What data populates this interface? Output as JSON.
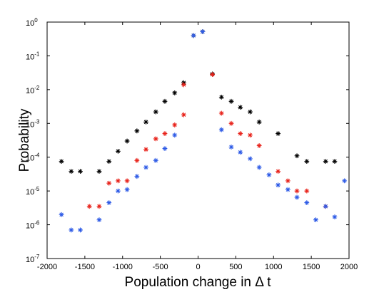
{
  "chart_data": {
    "type": "scatter",
    "xlabel": "Population change in Δ t",
    "ylabel": "Probability",
    "y_scale": "log",
    "xlim": [
      -2000,
      2000
    ],
    "ylim": [
      1e-07,
      1
    ],
    "grid": false,
    "legend": "none",
    "marker": "asterisk",
    "x_ticks": [
      {
        "value": -2000,
        "label": "-2000"
      },
      {
        "value": -1500,
        "label": "-1500"
      },
      {
        "value": -1000,
        "label": "-1000"
      },
      {
        "value": -500,
        "label": "-500"
      },
      {
        "value": 0,
        "label": "0"
      },
      {
        "value": 500,
        "label": "500"
      },
      {
        "value": 1000,
        "label": "1000"
      },
      {
        "value": 1500,
        "label": "1500"
      },
      {
        "value": 2000,
        "label": "2000"
      }
    ],
    "y_ticks": [
      {
        "value": 1e-07,
        "base": "10",
        "exp": "-7"
      },
      {
        "value": 1e-06,
        "base": "10",
        "exp": "-6"
      },
      {
        "value": 1e-05,
        "base": "10",
        "exp": "-5"
      },
      {
        "value": 0.0001,
        "base": "10",
        "exp": "-4"
      },
      {
        "value": 0.001,
        "base": "10",
        "exp": "-3"
      },
      {
        "value": 0.01,
        "base": "10",
        "exp": "-2"
      },
      {
        "value": 0.1,
        "base": "10",
        "exp": "-1"
      },
      {
        "value": 1,
        "base": "10",
        "exp": "0"
      }
    ],
    "series": [
      {
        "color": "#000000",
        "points": [
          {
            "x": -1810,
            "y": 7.5e-05
          },
          {
            "x": -1680,
            "y": 3.8e-05
          },
          {
            "x": -1560,
            "y": 3.8e-05
          },
          {
            "x": -1310,
            "y": 3.8e-05
          },
          {
            "x": -1180,
            "y": 7.5e-05
          },
          {
            "x": -1060,
            "y": 0.00015
          },
          {
            "x": -940,
            "y": 0.0003
          },
          {
            "x": -810,
            "y": 0.0006
          },
          {
            "x": -690,
            "y": 0.0011
          },
          {
            "x": -560,
            "y": 0.0022
          },
          {
            "x": -440,
            "y": 0.0045
          },
          {
            "x": -310,
            "y": 0.008
          },
          {
            "x": -190,
            "y": 0.016
          },
          {
            "x": -60,
            "y": 0.4
          },
          {
            "x": 60,
            "y": 0.52
          },
          {
            "x": 190,
            "y": 0.029
          },
          {
            "x": 310,
            "y": 0.006
          },
          {
            "x": 440,
            "y": 0.0045
          },
          {
            "x": 560,
            "y": 0.003
          },
          {
            "x": 690,
            "y": 0.0022
          },
          {
            "x": 810,
            "y": 0.0011
          },
          {
            "x": 1060,
            "y": 0.0005
          },
          {
            "x": 1310,
            "y": 0.00011
          },
          {
            "x": 1440,
            "y": 7.5e-05
          },
          {
            "x": 1690,
            "y": 7.5e-05
          },
          {
            "x": 1810,
            "y": 7.5e-05
          }
        ]
      },
      {
        "color": "#e8231b",
        "points": [
          {
            "x": -1440,
            "y": 3.5e-06
          },
          {
            "x": -1310,
            "y": 3.5e-06
          },
          {
            "x": -1180,
            "y": 1.7e-05
          },
          {
            "x": -1060,
            "y": 2e-05
          },
          {
            "x": -940,
            "y": 2e-05
          },
          {
            "x": -810,
            "y": 8e-05
          },
          {
            "x": -690,
            "y": 0.00017
          },
          {
            "x": -560,
            "y": 0.00035
          },
          {
            "x": -440,
            "y": 0.0005
          },
          {
            "x": -310,
            "y": 0.0009
          },
          {
            "x": -190,
            "y": 0.0018
          },
          {
            "x": -190,
            "y": 0.014
          },
          {
            "x": 190,
            "y": 0.028
          },
          {
            "x": 310,
            "y": 0.002
          },
          {
            "x": 440,
            "y": 0.001
          },
          {
            "x": 560,
            "y": 0.0005
          },
          {
            "x": 690,
            "y": 0.00045
          },
          {
            "x": 810,
            "y": 0.00022
          },
          {
            "x": 1060,
            "y": 3.8e-05
          },
          {
            "x": 1190,
            "y": 2e-05
          },
          {
            "x": 1310,
            "y": 1e-05
          },
          {
            "x": 1440,
            "y": 1e-05
          },
          {
            "x": 1690,
            "y": 3.5e-06
          }
        ]
      },
      {
        "color": "#2e5be6",
        "points": [
          {
            "x": -1810,
            "y": 2e-06
          },
          {
            "x": -1680,
            "y": 7e-07
          },
          {
            "x": -1560,
            "y": 7e-07
          },
          {
            "x": -1310,
            "y": 1.4e-06
          },
          {
            "x": -1180,
            "y": 4.5e-06
          },
          {
            "x": -1060,
            "y": 1e-05
          },
          {
            "x": -940,
            "y": 1.1e-05
          },
          {
            "x": -810,
            "y": 2.7e-05
          },
          {
            "x": -690,
            "y": 5e-05
          },
          {
            "x": -560,
            "y": 8e-05
          },
          {
            "x": -440,
            "y": 0.00018
          },
          {
            "x": -310,
            "y": 0.00045
          },
          {
            "x": -60,
            "y": 0.4
          },
          {
            "x": 60,
            "y": 0.52
          },
          {
            "x": 310,
            "y": 0.00065
          },
          {
            "x": 440,
            "y": 0.0002
          },
          {
            "x": 560,
            "y": 0.00014
          },
          {
            "x": 690,
            "y": 9e-05
          },
          {
            "x": 810,
            "y": 5e-05
          },
          {
            "x": 940,
            "y": 3e-05
          },
          {
            "x": 1060,
            "y": 1.5e-05
          },
          {
            "x": 1190,
            "y": 1.1e-05
          },
          {
            "x": 1310,
            "y": 6.5e-06
          },
          {
            "x": 1440,
            "y": 4.5e-06
          },
          {
            "x": 1560,
            "y": 1.4e-06
          },
          {
            "x": 1690,
            "y": 3.5e-06
          },
          {
            "x": 1810,
            "y": 1.7e-06
          },
          {
            "x": 1940,
            "y": 2e-05
          }
        ]
      }
    ]
  }
}
